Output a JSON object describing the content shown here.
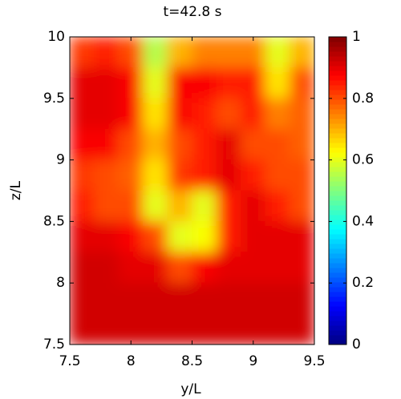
{
  "chart_data": {
    "type": "heatmap",
    "title": "t=42.8 s",
    "xlabel": "y/L",
    "ylabel": "z/L",
    "colormap": "jet",
    "x": [
      7.6,
      7.8,
      8.0,
      8.2,
      8.4,
      8.6,
      8.8,
      9.0,
      9.2,
      9.4
    ],
    "y": [
      9.875,
      9.625,
      9.375,
      9.125,
      8.875,
      8.625,
      8.375,
      8.125,
      7.875,
      7.625
    ],
    "z": [
      [
        0.82,
        0.85,
        0.8,
        0.55,
        0.7,
        0.75,
        0.75,
        0.75,
        0.6,
        0.7
      ],
      [
        0.9,
        0.9,
        0.88,
        0.6,
        0.88,
        0.88,
        0.85,
        0.85,
        0.65,
        0.8
      ],
      [
        0.9,
        0.9,
        0.88,
        0.65,
        0.88,
        0.85,
        0.8,
        0.85,
        0.75,
        0.78
      ],
      [
        0.88,
        0.88,
        0.8,
        0.7,
        0.8,
        0.85,
        0.9,
        0.8,
        0.8,
        0.78
      ],
      [
        0.82,
        0.8,
        0.78,
        0.65,
        0.82,
        0.85,
        0.9,
        0.85,
        0.8,
        0.8
      ],
      [
        0.85,
        0.8,
        0.8,
        0.6,
        0.7,
        0.6,
        0.85,
        0.9,
        0.85,
        0.8
      ],
      [
        0.9,
        0.9,
        0.88,
        0.8,
        0.6,
        0.62,
        0.85,
        0.9,
        0.9,
        0.9
      ],
      [
        0.92,
        0.92,
        0.9,
        0.9,
        0.8,
        0.88,
        0.9,
        0.9,
        0.9,
        0.9
      ],
      [
        0.92,
        0.92,
        0.92,
        0.92,
        0.92,
        0.92,
        0.92,
        0.92,
        0.92,
        0.92
      ],
      [
        0.92,
        0.92,
        0.92,
        0.92,
        0.92,
        0.92,
        0.92,
        0.92,
        0.92,
        0.92
      ]
    ],
    "xlim": [
      7.5,
      9.5
    ],
    "xticks": [
      7.5,
      8,
      8.5,
      9,
      9.5
    ],
    "ylim": [
      7.5,
      10
    ],
    "yticks": [
      7.5,
      8,
      8.5,
      9,
      9.5,
      10
    ],
    "clim": [
      0,
      1
    ],
    "cticks": [
      0,
      0.2,
      0.4,
      0.6,
      0.8,
      1
    ]
  }
}
